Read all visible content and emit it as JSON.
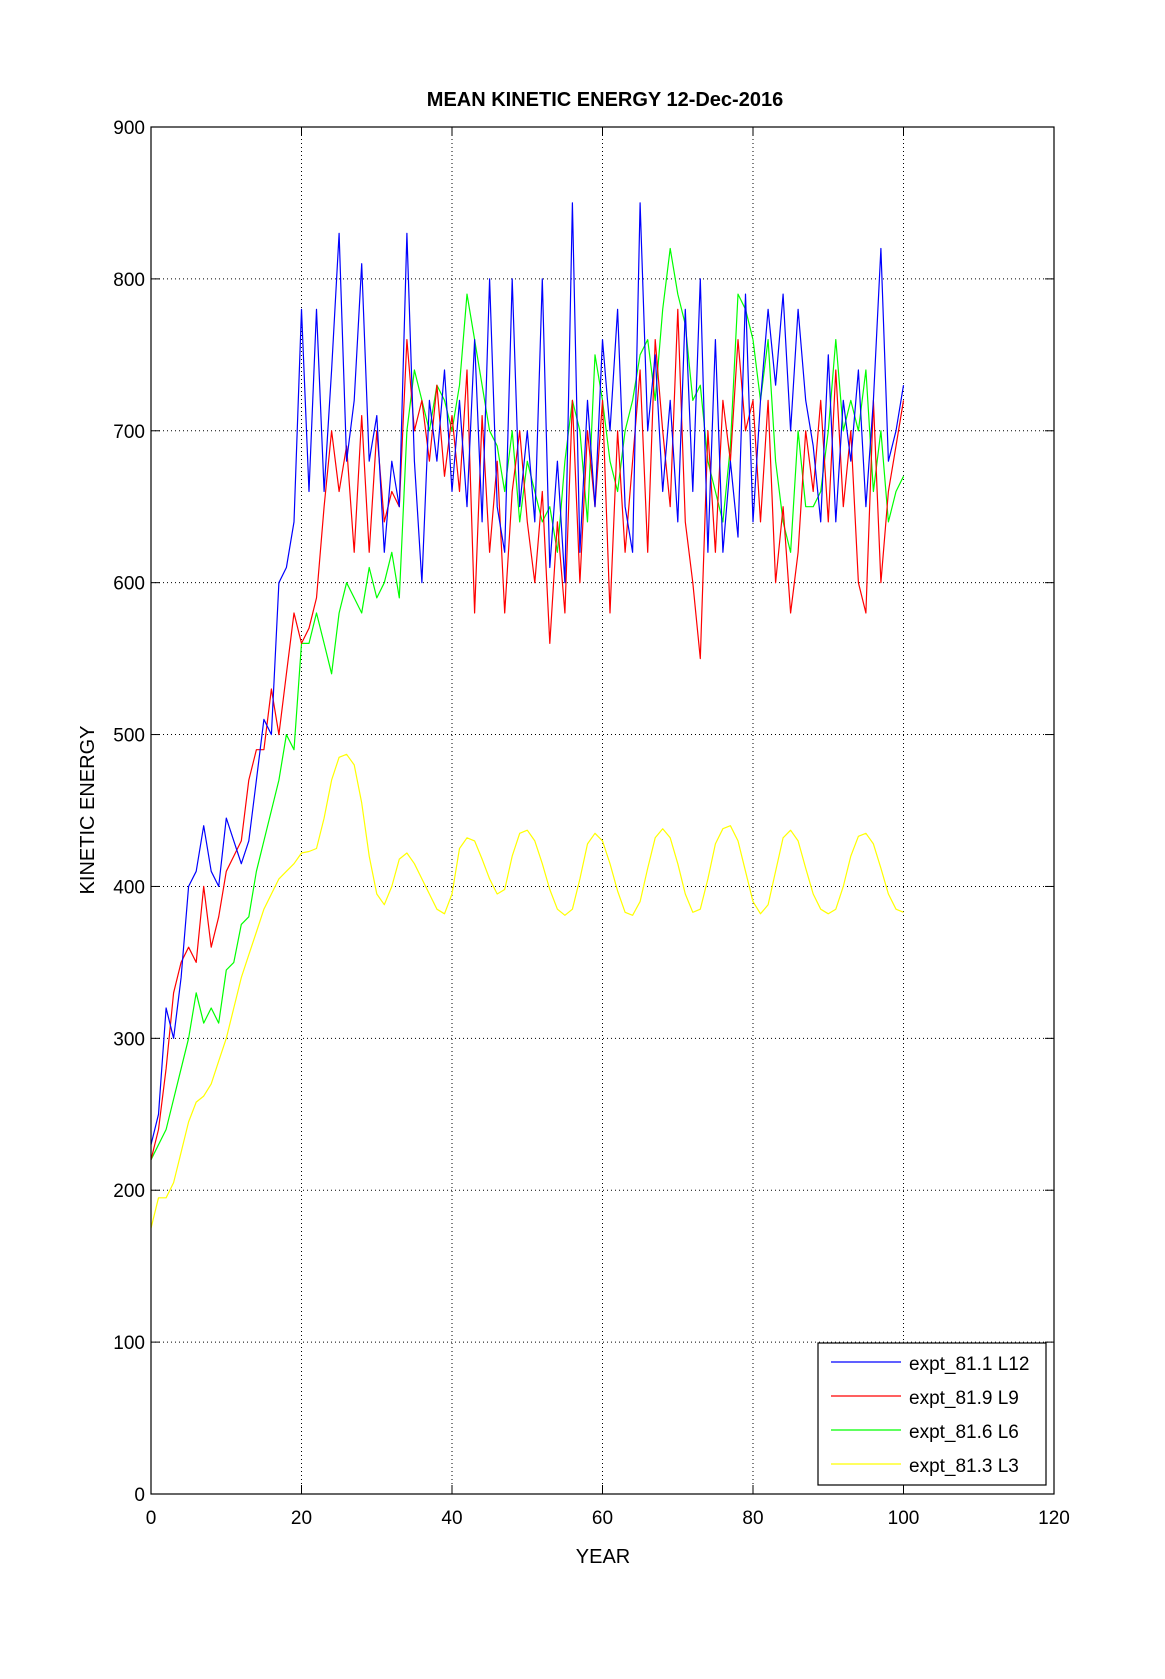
{
  "chart_data": {
    "type": "line",
    "title": "MEAN KINETIC ENERGY 12-Dec-2016",
    "xlabel": "YEAR",
    "ylabel": "KINETIC ENERGY",
    "xlim": [
      0,
      120
    ],
    "ylim": [
      0,
      900
    ],
    "xticks": [
      0,
      20,
      40,
      60,
      80,
      100,
      120
    ],
    "yticks": [
      0,
      100,
      200,
      300,
      400,
      500,
      600,
      700,
      800,
      900
    ],
    "grid": true,
    "legend_position": "bottom-right",
    "x_start": 0,
    "x_step": 1,
    "series": [
      {
        "name": "expt_81.1 L12",
        "color": "#0000ff",
        "values": [
          230,
          250,
          320,
          300,
          340,
          400,
          410,
          440,
          410,
          400,
          445,
          430,
          415,
          430,
          470,
          510,
          500,
          600,
          610,
          640,
          780,
          660,
          780,
          660,
          740,
          830,
          680,
          720,
          810,
          680,
          710,
          620,
          680,
          650,
          830,
          680,
          600,
          720,
          680,
          740,
          660,
          720,
          650,
          760,
          640,
          800,
          650,
          620,
          800,
          650,
          700,
          640,
          800,
          610,
          680,
          600,
          850,
          620,
          720,
          650,
          760,
          700,
          780,
          650,
          620,
          850,
          700,
          750,
          660,
          720,
          640,
          780,
          660,
          800,
          620,
          760,
          620,
          680,
          630,
          790,
          640,
          720,
          780,
          730,
          790,
          700,
          780,
          720,
          690,
          640,
          750,
          640,
          720,
          680,
          740,
          650,
          720,
          820,
          680,
          700,
          730
        ]
      },
      {
        "name": "expt_81.9 L9",
        "color": "#ff0000",
        "values": [
          220,
          240,
          280,
          330,
          350,
          360,
          350,
          400,
          360,
          380,
          410,
          420,
          430,
          470,
          490,
          490,
          530,
          500,
          540,
          580,
          560,
          570,
          590,
          650,
          700,
          660,
          690,
          620,
          710,
          620,
          700,
          640,
          660,
          650,
          760,
          700,
          720,
          680,
          730,
          670,
          710,
          660,
          740,
          580,
          710,
          620,
          680,
          580,
          660,
          700,
          640,
          600,
          660,
          560,
          640,
          580,
          720,
          600,
          700,
          650,
          720,
          580,
          700,
          620,
          680,
          740,
          620,
          760,
          700,
          650,
          780,
          640,
          600,
          550,
          700,
          620,
          720,
          680,
          760,
          700,
          720,
          640,
          720,
          600,
          650,
          580,
          620,
          700,
          660,
          720,
          640,
          740,
          650,
          700,
          600,
          580,
          720,
          600,
          660,
          690,
          720
        ]
      },
      {
        "name": "expt_81.6 L6",
        "color": "#00ff00",
        "values": [
          220,
          230,
          240,
          260,
          280,
          300,
          330,
          310,
          320,
          310,
          345,
          350,
          375,
          380,
          410,
          430,
          450,
          470,
          500,
          490,
          560,
          560,
          580,
          560,
          540,
          580,
          600,
          590,
          580,
          610,
          590,
          600,
          620,
          590,
          700,
          740,
          720,
          700,
          730,
          720,
          700,
          730,
          790,
          760,
          730,
          700,
          690,
          660,
          700,
          640,
          680,
          660,
          640,
          650,
          620,
          680,
          720,
          700,
          640,
          750,
          720,
          680,
          660,
          700,
          720,
          750,
          760,
          720,
          780,
          820,
          790,
          770,
          720,
          730,
          680,
          660,
          640,
          690,
          790,
          780,
          760,
          720,
          760,
          680,
          640,
          620,
          700,
          650,
          650,
          660,
          700,
          760,
          700,
          720,
          700,
          740,
          660,
          700,
          640,
          660,
          670
        ]
      },
      {
        "name": "expt_81.3 L3",
        "color": "#ffff00",
        "values": [
          175,
          195,
          195,
          205,
          225,
          245,
          258,
          262,
          270,
          285,
          300,
          320,
          340,
          355,
          370,
          385,
          395,
          405,
          410,
          415,
          422,
          423,
          425,
          445,
          470,
          485,
          487,
          480,
          455,
          420,
          395,
          388,
          400,
          418,
          422,
          415,
          405,
          395,
          385,
          382,
          395,
          425,
          432,
          430,
          418,
          405,
          395,
          398,
          420,
          435,
          437,
          430,
          415,
          398,
          385,
          381,
          385,
          405,
          428,
          435,
          430,
          415,
          397,
          383,
          381,
          390,
          412,
          432,
          438,
          432,
          415,
          395,
          383,
          385,
          405,
          428,
          438,
          440,
          430,
          410,
          390,
          382,
          388,
          410,
          432,
          437,
          430,
          412,
          395,
          385,
          382,
          385,
          400,
          420,
          433,
          435,
          428,
          412,
          395,
          385,
          383
        ]
      }
    ]
  }
}
